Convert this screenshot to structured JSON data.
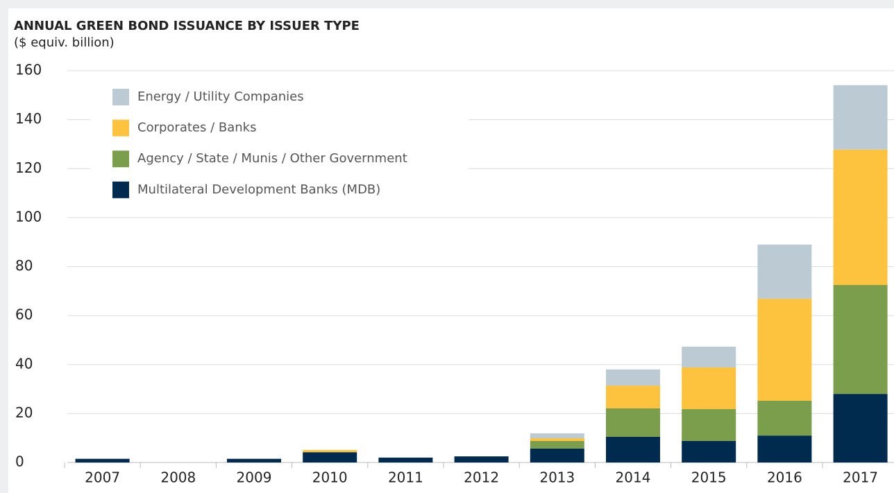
{
  "chart_data": {
    "type": "stacked_bar",
    "title": "ANNUAL GREEN BOND ISSUANCE BY ISSUER TYPE",
    "subtitle": "($ equiv. billion)",
    "categories": [
      "2007",
      "2008",
      "2009",
      "2010",
      "2011",
      "2012",
      "2013",
      "2014",
      "2015",
      "2016",
      "2017"
    ],
    "series": [
      {
        "name": "Multilateral Development Banks (MDB)",
        "color": "#002b4e",
        "values": [
          1.5,
          0,
          1.5,
          4.2,
          2.0,
          2.5,
          5.7,
          10.5,
          8.8,
          11.0,
          28.0
        ]
      },
      {
        "name": "Agency / State / Munis / Other Government",
        "color": "#7a9e4c",
        "values": [
          0,
          0,
          0,
          0,
          0,
          0,
          3.1,
          11.6,
          13.0,
          14.2,
          44.5
        ]
      },
      {
        "name": "Corporates / Banks",
        "color": "#fdc23e",
        "values": [
          0,
          0,
          0,
          0.9,
          0,
          0,
          1.1,
          9.3,
          17.0,
          41.7,
          55.3
        ]
      },
      {
        "name": "Energy / Utility Companies",
        "color": "#bccbd3",
        "values": [
          0,
          0,
          0,
          0,
          0,
          0,
          2.0,
          6.6,
          8.5,
          22.1,
          26.3
        ]
      }
    ],
    "ylim": [
      0,
      160
    ],
    "yticks": [
      0,
      20,
      40,
      60,
      80,
      100,
      120,
      140,
      160
    ],
    "grid": true
  }
}
